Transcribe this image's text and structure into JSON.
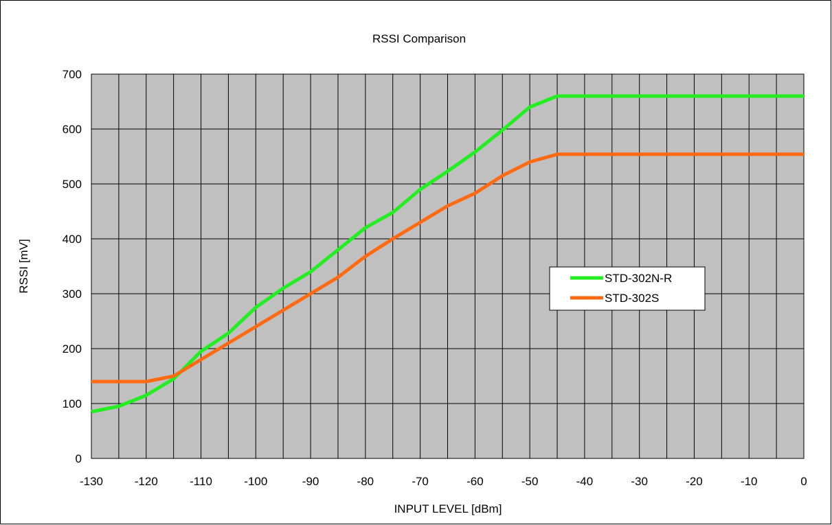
{
  "chart_data": {
    "type": "line",
    "title": "RSSI Comparison",
    "xlabel": "INPUT LEVEL [dBm]",
    "ylabel": "RSSI [mV]",
    "xlim": [
      -130,
      0
    ],
    "ylim": [
      0,
      700
    ],
    "x_ticks": [
      -130,
      -120,
      -110,
      -100,
      -90,
      -80,
      -70,
      -60,
      -50,
      -40,
      -30,
      -20,
      -10,
      0
    ],
    "y_ticks": [
      0,
      100,
      200,
      300,
      400,
      500,
      600,
      700
    ],
    "x_grid_step": 5,
    "y_grid_step": 100,
    "grid": true,
    "plot_background": "#c0c0c0",
    "legend_position": "right-center",
    "series": [
      {
        "name": "STD-302N-R",
        "color": "#22ee22",
        "x": [
          -130,
          -125,
          -120,
          -115,
          -110,
          -105,
          -100,
          -95,
          -90,
          -85,
          -80,
          -75,
          -70,
          -65,
          -60,
          -55,
          -50,
          -45,
          0
        ],
        "y": [
          85,
          95,
          115,
          145,
          195,
          228,
          275,
          310,
          340,
          380,
          420,
          448,
          490,
          523,
          558,
          598,
          640,
          660,
          660
        ]
      },
      {
        "name": "STD-302S",
        "color": "#ff6a13",
        "x": [
          -130,
          -125,
          -120,
          -115,
          -110,
          -105,
          -100,
          -95,
          -90,
          -85,
          -80,
          -75,
          -70,
          -65,
          -60,
          -55,
          -50,
          -45,
          0
        ],
        "y": [
          140,
          140,
          140,
          150,
          180,
          210,
          240,
          270,
          300,
          330,
          368,
          400,
          430,
          460,
          483,
          515,
          540,
          554,
          554
        ]
      }
    ]
  }
}
